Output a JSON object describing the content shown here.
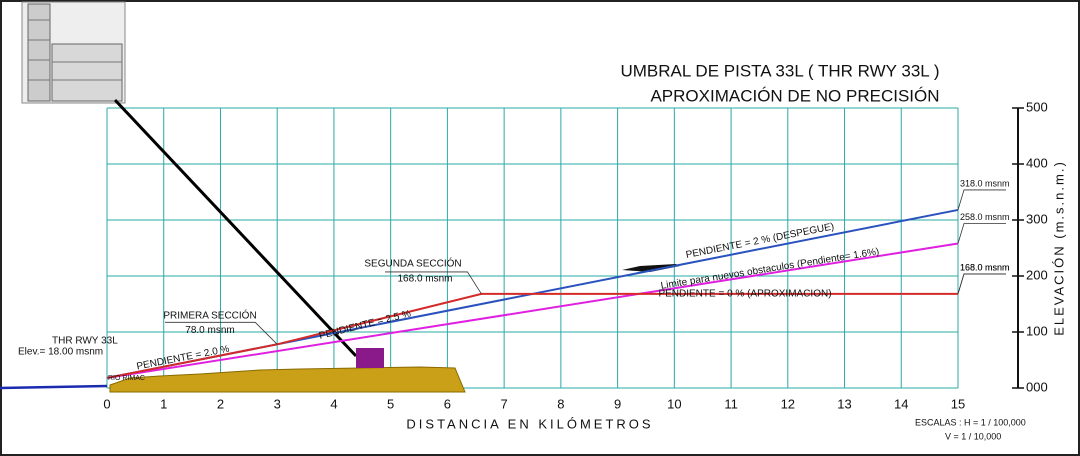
{
  "chart_data": {
    "type": "line",
    "title": [
      "UMBRAL DE PISTA 33L ( THR RWY 33L )",
      "APROXIMACIÓN  DE NO PRECISIÓN"
    ],
    "x_label": "DISTANCIA   EN   KILÓMETROS",
    "y_label": "ELEVACIÓN  (m.s.n.m.)",
    "xlim": [
      0,
      15
    ],
    "ylim": [
      0,
      500
    ],
    "xticks": [
      0,
      1,
      2,
      3,
      4,
      5,
      6,
      7,
      8,
      9,
      10,
      11,
      12,
      13,
      14,
      15
    ],
    "yticks": [
      {
        "value": 0,
        "label": "000"
      },
      100,
      200,
      300,
      400,
      500
    ],
    "grid": true,
    "series": [
      {
        "name": "PENDIENTE = 2 % (DESPEGUE)",
        "color": "#2a52be",
        "x": [
          0,
          15
        ],
        "values": [
          18,
          318
        ],
        "value_labels": [
          null,
          "318.0 msnm"
        ]
      },
      {
        "name": "Limite para nuevos obstaculos (Pendiente= 1.6%)",
        "color": "#e020e0",
        "x": [
          0,
          15
        ],
        "values": [
          18,
          258
        ],
        "value_labels": [
          null,
          "258.0 msnm"
        ]
      },
      {
        "name": "PENDIENTE = 0 % (APROXIMACION)",
        "color": "#d42a2a",
        "x": [
          0,
          3,
          6.6,
          15
        ],
        "values": [
          18,
          78,
          168,
          168
        ],
        "value_labels": [
          null,
          "78.0 msnm",
          "168.0 msnm",
          "168.0 msnm"
        ]
      }
    ],
    "annotations": [
      "THR RWY 33L",
      "Elev.= 18.00 msnm",
      "PRIMERA SECCIÓN",
      "SEGUNDA SECCIÓN",
      "PENDIENTE = 2.0 %",
      "PENDIENTE = 2.5 %",
      "RIO RIMAC",
      "ESCALAS :  H = 1 / 100,000",
      "V = 1  /  10,000"
    ]
  }
}
